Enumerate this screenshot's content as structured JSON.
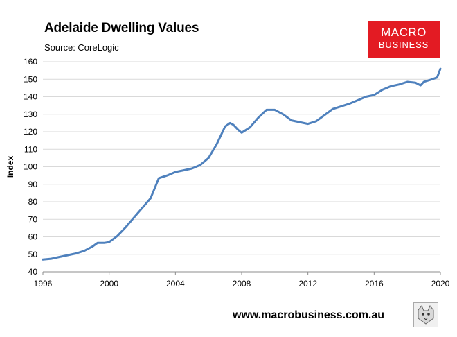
{
  "header": {
    "title": "Adelaide Dwelling Values",
    "subtitle": "Source: CoreLogic"
  },
  "logo": {
    "line1": "MACRO",
    "line2": "BUSINESS"
  },
  "footer": {
    "url": "www.macrobusiness.com.au"
  },
  "colors": {
    "line": "#4f81bd",
    "logo_bg": "#e31b23"
  },
  "chart_data": {
    "type": "line",
    "title": "Adelaide Dwelling Values",
    "subtitle": "Source: CoreLogic",
    "xlabel": "",
    "ylabel": "Index",
    "xlim": [
      1996,
      2020
    ],
    "ylim": [
      40,
      160
    ],
    "x_ticks": [
      "1996",
      "2000",
      "2004",
      "2008",
      "2012",
      "2016",
      "2020"
    ],
    "y_ticks": [
      "40",
      "50",
      "60",
      "70",
      "80",
      "90",
      "100",
      "110",
      "120",
      "130",
      "140",
      "150",
      "160"
    ],
    "grid": "horizontal",
    "legend": "none",
    "series": [
      {
        "name": "",
        "x": [
          1996.0,
          1996.5,
          1997.0,
          1997.5,
          1998.0,
          1998.5,
          1999.0,
          1999.3,
          1999.7,
          2000.0,
          2000.5,
          2001.0,
          2001.5,
          2002.0,
          2002.5,
          2003.0,
          2003.5,
          2004.0,
          2004.5,
          2005.0,
          2005.5,
          2006.0,
          2006.5,
          2007.0,
          2007.3,
          2007.5,
          2007.8,
          2008.0,
          2008.5,
          2009.0,
          2009.5,
          2010.0,
          2010.5,
          2011.0,
          2011.5,
          2012.0,
          2012.5,
          2013.0,
          2013.5,
          2014.0,
          2014.5,
          2015.0,
          2015.5,
          2016.0,
          2016.5,
          2017.0,
          2017.5,
          2018.0,
          2018.5,
          2018.8,
          2019.0,
          2019.5,
          2019.8,
          2020.0
        ],
        "y": [
          47,
          47.5,
          48.5,
          49.5,
          50.5,
          52,
          54.5,
          56.5,
          56.5,
          57,
          60.5,
          65.5,
          71,
          76.5,
          82,
          93.5,
          95,
          97,
          98,
          99,
          101,
          105,
          113,
          123,
          125,
          124,
          121,
          119.5,
          122.5,
          128,
          132.5,
          132.5,
          130,
          126.5,
          125.5,
          124.5,
          126,
          129.5,
          133,
          134.5,
          136,
          138,
          140,
          141,
          144,
          146,
          147,
          148.5,
          148,
          146.5,
          148.5,
          150,
          151,
          156
        ]
      }
    ]
  }
}
